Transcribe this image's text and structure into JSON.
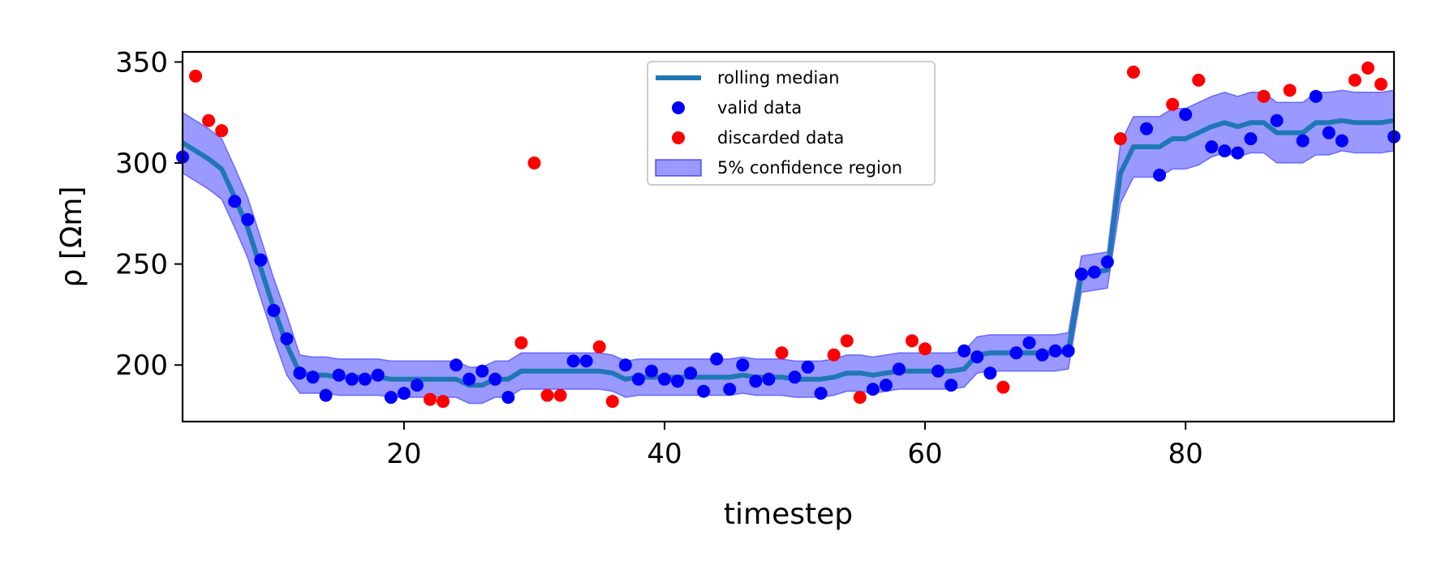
{
  "chart_data": {
    "type": "scatter",
    "xlabel": "timestep",
    "ylabel": "ρ [Ωm]",
    "xlim": [
      3,
      96
    ],
    "ylim": [
      172,
      355
    ],
    "xticks": [
      20,
      40,
      60,
      80
    ],
    "yticks": [
      200,
      250,
      300,
      350
    ],
    "grid": false,
    "legend_placement": "top-center",
    "series": [
      {
        "name": "rolling median",
        "kind": "line",
        "color": "#1f77b4",
        "x": [
          3,
          4,
          5,
          6,
          7,
          8,
          9,
          10,
          11,
          12,
          13,
          14,
          15,
          16,
          17,
          18,
          19,
          20,
          21,
          22,
          23,
          24,
          25,
          26,
          27,
          28,
          29,
          30,
          31,
          32,
          33,
          34,
          35,
          36,
          37,
          38,
          39,
          40,
          41,
          42,
          43,
          44,
          45,
          46,
          47,
          48,
          49,
          50,
          51,
          52,
          53,
          54,
          55,
          56,
          57,
          58,
          59,
          60,
          61,
          62,
          63,
          64,
          65,
          66,
          67,
          68,
          69,
          70,
          71,
          72,
          73,
          74,
          75,
          76,
          77,
          78,
          79,
          80,
          81,
          82,
          83,
          84,
          85,
          86,
          87,
          88,
          89,
          90,
          91,
          92,
          93,
          94,
          95,
          96
        ],
        "y": [
          310,
          306,
          302,
          297,
          283,
          268,
          248,
          228,
          210,
          196,
          195,
          195,
          194,
          194,
          194,
          194,
          193,
          193,
          193,
          193,
          193,
          193,
          190,
          190,
          193,
          193,
          197,
          197,
          197,
          197,
          197,
          197,
          197,
          196,
          193,
          194,
          194,
          194,
          194,
          194,
          194,
          194,
          194,
          195,
          194,
          194,
          194,
          193,
          193,
          193,
          194,
          196,
          196,
          195,
          196,
          197,
          197,
          197,
          197,
          197,
          198,
          205,
          206,
          206,
          206,
          206,
          206,
          206,
          207,
          245,
          246,
          247,
          295,
          308,
          308,
          308,
          312,
          312,
          315,
          318,
          320,
          318,
          320,
          320,
          315,
          315,
          315,
          320,
          320,
          321,
          320,
          320,
          320,
          321
        ]
      },
      {
        "name": "valid data",
        "kind": "points",
        "color": "#0000ff",
        "x": [
          3,
          7,
          8,
          9,
          10,
          11,
          12,
          13,
          14,
          15,
          16,
          17,
          18,
          19,
          20,
          21,
          24,
          25,
          26,
          27,
          28,
          33,
          34,
          37,
          38,
          39,
          40,
          41,
          42,
          43,
          44,
          45,
          46,
          47,
          48,
          50,
          51,
          52,
          56,
          57,
          58,
          61,
          62,
          63,
          64,
          65,
          67,
          68,
          69,
          70,
          71,
          72,
          73,
          74,
          77,
          78,
          80,
          82,
          83,
          84,
          85,
          87,
          89,
          90,
          91,
          92,
          96
        ],
        "y": [
          303,
          281,
          272,
          252,
          227,
          213,
          196,
          194,
          185,
          195,
          193,
          193,
          195,
          184,
          186,
          190,
          200,
          193,
          197,
          193,
          184,
          202,
          202,
          200,
          193,
          197,
          193,
          192,
          196,
          187,
          203,
          188,
          200,
          192,
          193,
          194,
          199,
          186,
          188,
          190,
          198,
          197,
          190,
          207,
          204,
          196,
          206,
          211,
          205,
          207,
          207,
          245,
          246,
          251,
          317,
          294,
          324,
          308,
          306,
          305,
          312,
          321,
          311,
          333,
          315,
          311,
          313
        ]
      },
      {
        "name": "discarded data",
        "kind": "points",
        "color": "#ff0000",
        "x": [
          4,
          5,
          6,
          22,
          23,
          29,
          30,
          31,
          32,
          35,
          36,
          49,
          53,
          54,
          55,
          59,
          60,
          66,
          75,
          76,
          79,
          81,
          86,
          88,
          93,
          94,
          95
        ],
        "y": [
          343,
          321,
          316,
          183,
          182,
          211,
          300,
          185,
          185,
          209,
          182,
          206,
          205,
          212,
          184,
          212,
          208,
          189,
          312,
          345,
          329,
          341,
          333,
          336,
          341,
          347,
          339
        ]
      },
      {
        "name": "5% confidence region",
        "kind": "band",
        "color": "#0000ff",
        "x": [
          3,
          4,
          5,
          6,
          7,
          8,
          9,
          10,
          11,
          12,
          13,
          14,
          15,
          16,
          17,
          18,
          19,
          20,
          21,
          22,
          23,
          24,
          25,
          26,
          27,
          28,
          29,
          30,
          31,
          32,
          33,
          34,
          35,
          36,
          37,
          38,
          39,
          40,
          41,
          42,
          43,
          44,
          45,
          46,
          47,
          48,
          49,
          50,
          51,
          52,
          53,
          54,
          55,
          56,
          57,
          58,
          59,
          60,
          61,
          62,
          63,
          64,
          65,
          66,
          67,
          68,
          69,
          70,
          71,
          72,
          73,
          74,
          75,
          76,
          77,
          78,
          79,
          80,
          81,
          82,
          83,
          84,
          85,
          86,
          87,
          88,
          89,
          90,
          91,
          92,
          93,
          94,
          95,
          96
        ],
        "lower": [
          295,
          291,
          287,
          282,
          268,
          253,
          233,
          213,
          195,
          186,
          186,
          186,
          185,
          185,
          185,
          185,
          184,
          184,
          184,
          184,
          184,
          184,
          181,
          181,
          184,
          184,
          188,
          188,
          188,
          188,
          188,
          188,
          188,
          187,
          184,
          185,
          185,
          185,
          185,
          185,
          185,
          185,
          185,
          186,
          185,
          185,
          185,
          184,
          184,
          184,
          185,
          187,
          187,
          186,
          187,
          188,
          188,
          188,
          188,
          188,
          189,
          196,
          197,
          197,
          197,
          197,
          197,
          197,
          198,
          236,
          237,
          238,
          280,
          293,
          293,
          293,
          297,
          297,
          299,
          303,
          305,
          303,
          305,
          305,
          300,
          300,
          300,
          304,
          304,
          306,
          305,
          305,
          305,
          306
        ],
        "upper": [
          325,
          321,
          317,
          312,
          298,
          283,
          263,
          243,
          225,
          205,
          204,
          204,
          203,
          203,
          203,
          203,
          202,
          202,
          202,
          202,
          202,
          202,
          199,
          199,
          202,
          202,
          206,
          206,
          206,
          206,
          206,
          206,
          206,
          205,
          202,
          203,
          203,
          203,
          203,
          203,
          203,
          203,
          203,
          204,
          203,
          203,
          203,
          202,
          202,
          202,
          203,
          205,
          205,
          204,
          205,
          206,
          206,
          206,
          206,
          206,
          207,
          214,
          215,
          215,
          215,
          215,
          215,
          215,
          216,
          254,
          255,
          256,
          310,
          323,
          323,
          323,
          327,
          327,
          330,
          333,
          335,
          333,
          335,
          335,
          330,
          330,
          330,
          335,
          335,
          336,
          335,
          335,
          335,
          336
        ]
      }
    ]
  }
}
